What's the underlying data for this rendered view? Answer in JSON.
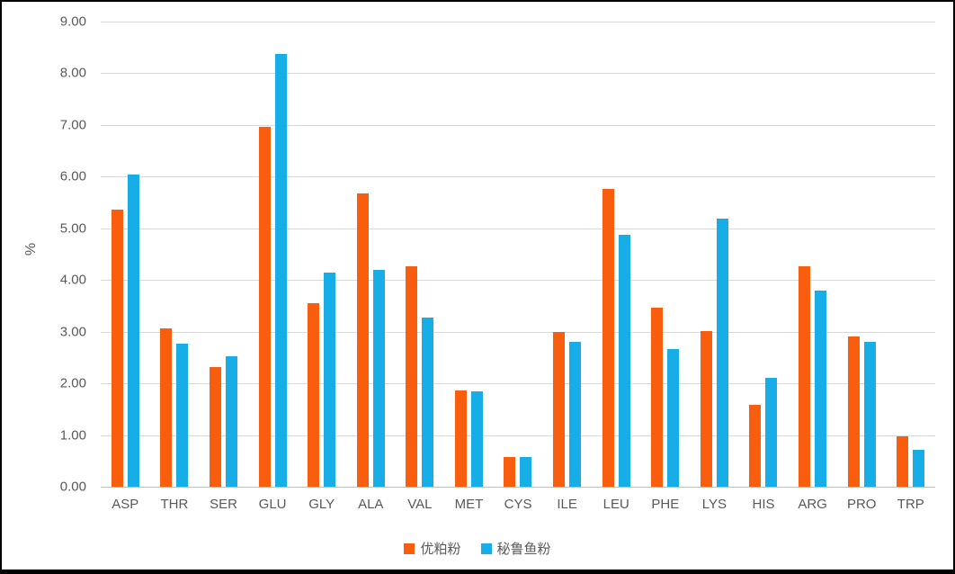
{
  "colors": {
    "series1": "#F95D0E",
    "series2": "#17AEE8",
    "axis_text": "#595959",
    "gridline": "#D9D9D9",
    "axis_line": "#BFBFBF",
    "frame_border": "#000000"
  },
  "chart_data": {
    "type": "bar",
    "title": "",
    "xlabel": "",
    "ylabel": "%",
    "ylim": [
      0,
      9
    ],
    "ytick_step": 1,
    "grid": true,
    "legend_position": "bottom",
    "ytick_labels": [
      "0.00",
      "1.00",
      "2.00",
      "3.00",
      "4.00",
      "5.00",
      "6.00",
      "7.00",
      "8.00",
      "9.00"
    ],
    "categories": [
      "ASP",
      "THR",
      "SER",
      "GLU",
      "GLY",
      "ALA",
      "VAL",
      "MET",
      "CYS",
      "ILE",
      "LEU",
      "PHE",
      "LYS",
      "HIS",
      "ARG",
      "PRO",
      "TRP"
    ],
    "series": [
      {
        "name": "优粕粉",
        "color": "#F95D0E",
        "values": [
          5.37,
          3.06,
          2.31,
          6.97,
          3.55,
          5.68,
          4.26,
          1.87,
          0.58,
          2.99,
          5.76,
          3.47,
          3.02,
          1.58,
          4.26,
          2.91,
          0.97
        ]
      },
      {
        "name": "秘鲁鱼粉",
        "color": "#17AEE8",
        "values": [
          6.04,
          2.76,
          2.52,
          8.37,
          4.14,
          4.19,
          3.27,
          1.85,
          0.57,
          2.8,
          4.87,
          2.66,
          5.18,
          2.1,
          3.79,
          2.8,
          0.72
        ]
      }
    ]
  }
}
